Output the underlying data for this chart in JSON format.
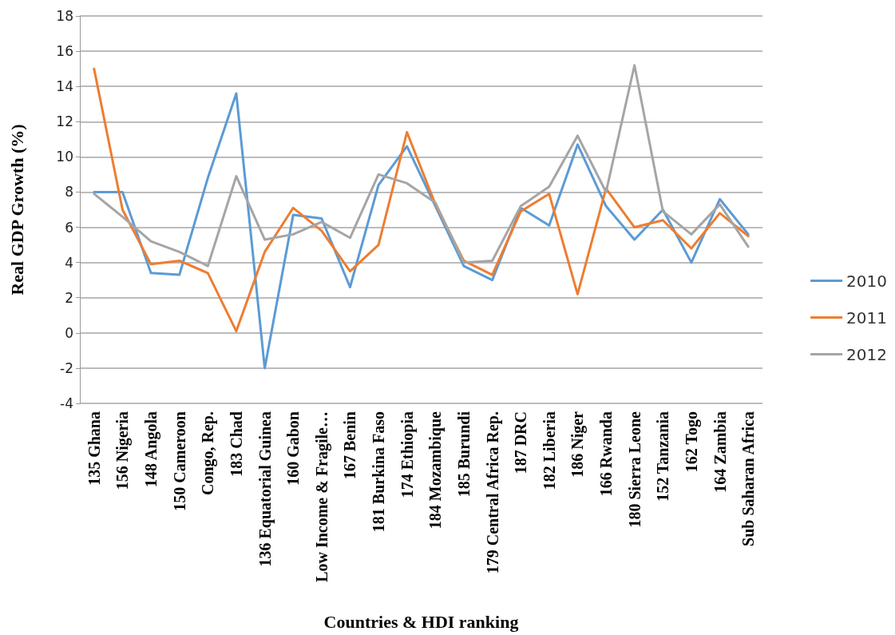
{
  "chart_data": {
    "type": "line",
    "xlabel": "Countries & HDI ranking",
    "ylabel": "Real GDP Growth (%)",
    "categories": [
      "135 Ghana",
      "156 Nigeria",
      "148 Angola",
      "150 Cameroon",
      "Congo, Rep.",
      "183 Chad",
      "136 Equatorial Guinea",
      "160 Gabon",
      "Low Income & Fragile…",
      "167 Benin",
      "181 Burkina Faso",
      "174 Ethiopia",
      "184 Mozambique",
      "185 Burundi",
      "179 Central Africa Rep.",
      "187 DRC",
      "182 Liberia",
      "186 Niger",
      "166 Rwanda",
      "180 Sierra Leone",
      "152 Tanzania",
      "162 Togo",
      "164 Zambia",
      "Sub Saharan Africa"
    ],
    "series": [
      {
        "name": "2010",
        "color": "#5b9bd5",
        "values": [
          8.0,
          8.0,
          3.4,
          3.3,
          8.8,
          13.6,
          -2.0,
          6.7,
          6.5,
          2.6,
          8.4,
          10.6,
          7.2,
          3.8,
          3.0,
          7.1,
          6.1,
          10.7,
          7.2,
          5.3,
          7.0,
          4.0,
          7.6,
          5.6
        ]
      },
      {
        "name": "2011",
        "color": "#ed7d31",
        "values": [
          15.0,
          7.0,
          3.9,
          4.1,
          3.4,
          0.1,
          4.6,
          7.1,
          5.8,
          3.5,
          5.0,
          11.4,
          7.3,
          4.1,
          3.3,
          6.9,
          7.9,
          2.2,
          8.2,
          6.0,
          6.4,
          4.8,
          6.8,
          5.5
        ]
      },
      {
        "name": "2012",
        "color": "#a5a5a5",
        "values": [
          7.9,
          6.6,
          5.2,
          4.6,
          3.8,
          8.9,
          5.3,
          5.6,
          6.3,
          5.4,
          9.0,
          8.5,
          7.4,
          4.0,
          4.1,
          7.2,
          8.3,
          11.2,
          8.0,
          15.2,
          6.9,
          5.6,
          7.3,
          4.9
        ]
      }
    ],
    "ylim": [
      -4,
      18
    ],
    "yticks": [
      -4,
      -2,
      0,
      2,
      4,
      6,
      8,
      10,
      12,
      14,
      16,
      18
    ],
    "grid": "y",
    "legend": "right",
    "marker": "none",
    "line_style": "solid"
  }
}
